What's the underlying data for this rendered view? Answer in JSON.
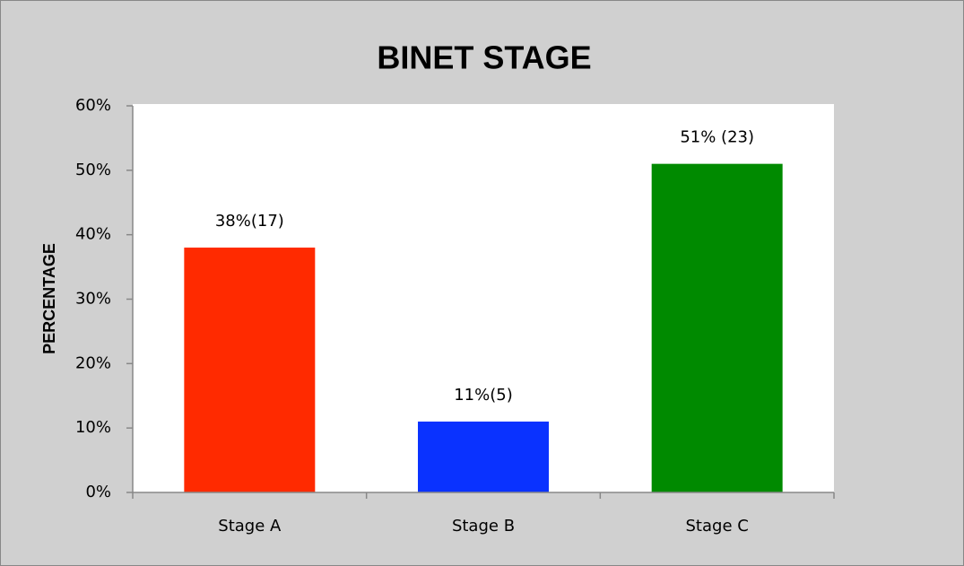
{
  "chart_data": {
    "type": "bar",
    "title": "BINET STAGE",
    "y_label": "PERCENTAGE",
    "categories": [
      "Stage A",
      "Stage B",
      "Stage C"
    ],
    "values": [
      38,
      11,
      51
    ],
    "value_labels": [
      "38%(17)",
      "11%(5)",
      "51% (23)"
    ],
    "colors": [
      "#ff2a00",
      "#0a32ff",
      "#008a00"
    ],
    "ylim": [
      0,
      60
    ],
    "yticks": [
      {
        "value": 0,
        "label": "0%"
      },
      {
        "value": 10,
        "label": "10%"
      },
      {
        "value": 20,
        "label": "20%"
      },
      {
        "value": 30,
        "label": "30%"
      },
      {
        "value": 40,
        "label": "40%"
      },
      {
        "value": 50,
        "label": "50%"
      },
      {
        "value": 60,
        "label": "60%"
      }
    ],
    "grid": false
  }
}
